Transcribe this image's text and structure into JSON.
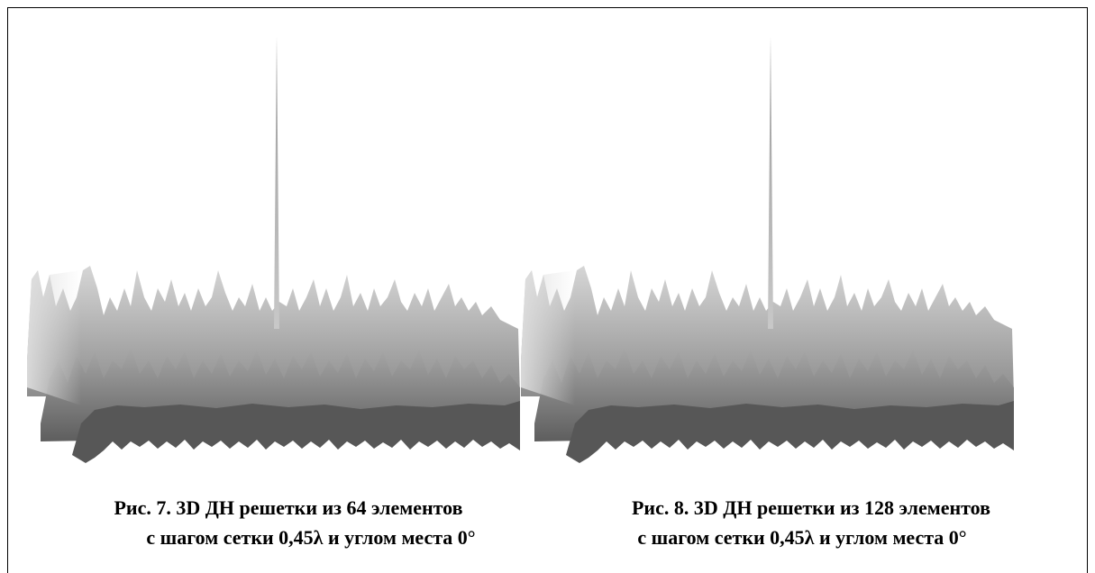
{
  "figures": [
    {
      "caption": [
        "Рис. 7. 3D ДН решетки из 64 элементов",
        "с шагом сетки 0,45λ и углом места 0°"
      ]
    },
    {
      "caption": [
        "Рис. 8. 3D ДН решетки из 128 элементов",
        "с шагом сетки 0,45λ и углом места 0°"
      ]
    }
  ]
}
